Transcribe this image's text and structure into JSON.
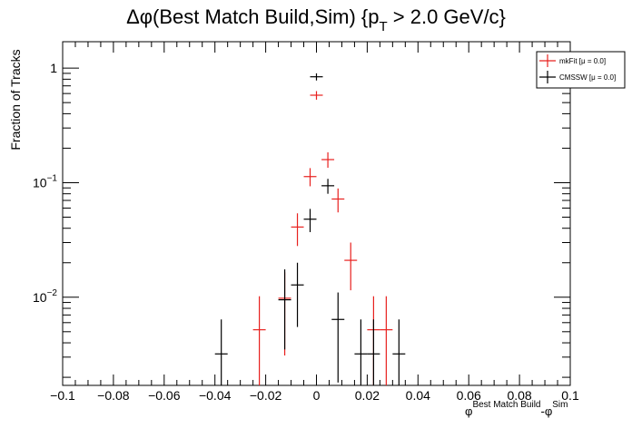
{
  "chart_data": {
    "type": "scatter",
    "title_main": "Δφ(Best Match Build,Sim) {p",
    "title_sub": "T",
    "title_tail": " > 2.0 GeV/c}",
    "ylabel": "Fraction of Tracks",
    "xlabel_parts": {
      "phi1": "φ",
      "sub1": "Best Match Build",
      "minus_phi2": "-φ",
      "sub2": "Sim"
    },
    "xlim": [
      -0.1,
      0.1
    ],
    "ylim": [
      0.0017,
      1.7
    ],
    "yscale": "log",
    "x_ticks": [
      "−0.1",
      "−0.08",
      "−0.06",
      "−0.04",
      "−0.02",
      "0",
      "0.02",
      "0.04",
      "0.06",
      "0.08",
      "0.1"
    ],
    "y_ticks": [
      {
        "value": 1,
        "label": "1"
      },
      {
        "value": 0.1,
        "label": "10",
        "exp": "−1"
      },
      {
        "value": 0.01,
        "label": "10",
        "exp": "−2"
      }
    ],
    "legend_position": "top-right",
    "bin_half_width": 0.0025,
    "series": [
      {
        "name": "mkFit",
        "label": "mkFit  [μ =  0.0]",
        "color": "#e8201e",
        "points": [
          {
            "x": -0.0225,
            "y": 0.0052,
            "ylo": 0.0005,
            "yhi": 0.0102
          },
          {
            "x": -0.0125,
            "y": 0.0098,
            "ylo": 0.0031,
            "yhi": 0.0165
          },
          {
            "x": -0.0075,
            "y": 0.041,
            "ylo": 0.028,
            "yhi": 0.054
          },
          {
            "x": -0.0025,
            "y": 0.113,
            "ylo": 0.093,
            "yhi": 0.134
          },
          {
            "x": 0.0,
            "y": 0.58,
            "ylo": 0.53,
            "yhi": 0.63
          },
          {
            "x": 0.0045,
            "y": 0.159,
            "ylo": 0.135,
            "yhi": 0.184
          },
          {
            "x": 0.0085,
            "y": 0.072,
            "ylo": 0.055,
            "yhi": 0.089
          },
          {
            "x": 0.0135,
            "y": 0.021,
            "ylo": 0.0115,
            "yhi": 0.03
          },
          {
            "x": 0.0225,
            "y": 0.0052,
            "ylo": 0.0005,
            "yhi": 0.0102
          },
          {
            "x": 0.0275,
            "y": 0.0052,
            "ylo": 0.0005,
            "yhi": 0.0102
          }
        ]
      },
      {
        "name": "CMSSW",
        "label": "CMSSW  [μ =  0.0]",
        "color": "#000000",
        "points": [
          {
            "x": -0.0375,
            "y": 0.0032,
            "ylo": 0.0005,
            "yhi": 0.0064
          },
          {
            "x": -0.0125,
            "y": 0.0095,
            "ylo": 0.0035,
            "yhi": 0.0175
          },
          {
            "x": -0.0075,
            "y": 0.0128,
            "ylo": 0.0055,
            "yhi": 0.02
          },
          {
            "x": -0.0025,
            "y": 0.048,
            "ylo": 0.037,
            "yhi": 0.059
          },
          {
            "x": 0.0,
            "y": 0.84,
            "ylo": 0.78,
            "yhi": 0.9
          },
          {
            "x": 0.0045,
            "y": 0.094,
            "ylo": 0.08,
            "yhi": 0.108
          },
          {
            "x": 0.0085,
            "y": 0.0064,
            "ylo": 0.0018,
            "yhi": 0.011
          },
          {
            "x": 0.0175,
            "y": 0.0032,
            "ylo": 0.0005,
            "yhi": 0.0064
          },
          {
            "x": 0.0225,
            "y": 0.0032,
            "ylo": 0.0005,
            "yhi": 0.0064
          },
          {
            "x": 0.0325,
            "y": 0.0032,
            "ylo": 0.0005,
            "yhi": 0.0064
          }
        ]
      }
    ]
  }
}
